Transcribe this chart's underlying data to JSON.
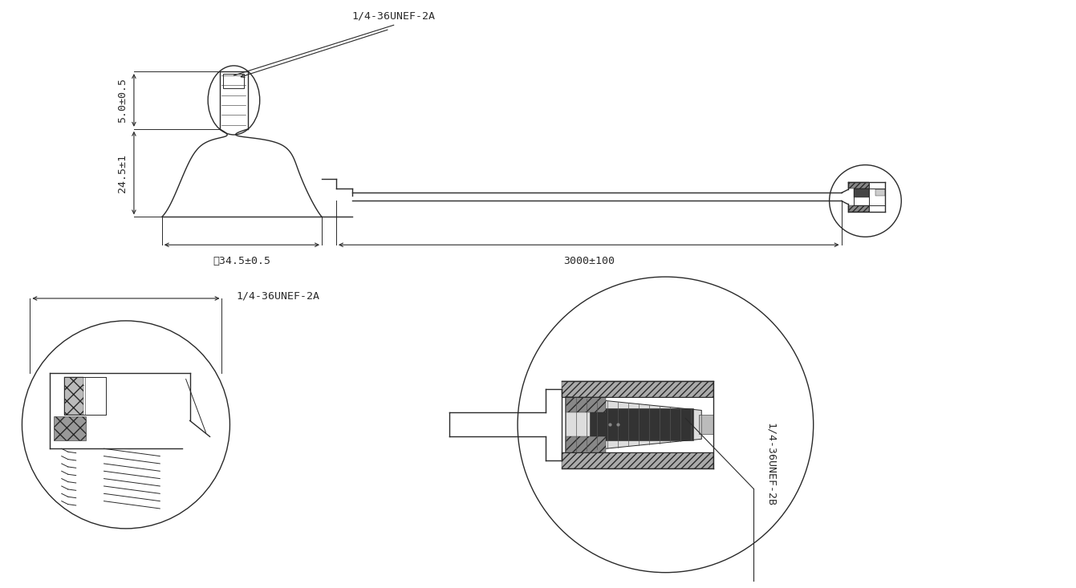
{
  "bg_color": "#ffffff",
  "lc": "#2a2a2a",
  "dim_c": "#2a2a2a",
  "fig_w": 13.41,
  "fig_h": 7.33,
  "labels": {
    "top_thread": "1/4-36UNEF-2A",
    "dia": "̀34.5±0.5",
    "cable": "3000±100",
    "height": "24.5±1",
    "thread_h": "5.0±0.5",
    "bl_thread": "1/4-36UNEF-2A",
    "br_thread": "1/4-36UNEF-2B"
  }
}
